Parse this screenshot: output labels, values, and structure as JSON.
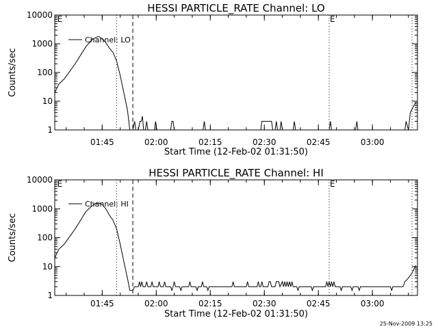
{
  "chart_data": [
    {
      "type": "line",
      "title": "HESSI PARTICLE_RATE Channel: LO",
      "xlabel": "Start Time (12-Feb-02 01:31:50)",
      "ylabel": "Counts/sec",
      "y_scale": "log",
      "ylim": [
        1,
        10000
      ],
      "xlim": [
        "01:31:50",
        "03:12:30"
      ],
      "x_ticks": [
        "01:45",
        "02:00",
        "02:15",
        "02:30",
        "02:45",
        "03:00"
      ],
      "y_ticks": [
        "1",
        "10",
        "100",
        "1000",
        "10000"
      ],
      "legend": {
        "position": "top-left",
        "entries": [
          "Channel: LO"
        ]
      },
      "annotations": [
        {
          "text": "E",
          "x": "01:32:20"
        },
        {
          "text": "E",
          "x": "02:48:00"
        }
      ],
      "vertical_lines": [
        {
          "x": "01:49:00",
          "style": "dotted"
        },
        {
          "x": "01:53:30",
          "style": "dashed"
        },
        {
          "x": "02:48:00",
          "style": "dotted"
        },
        {
          "x": "03:11:00",
          "style": "dotted"
        }
      ],
      "series": [
        {
          "name": "Channel: LO",
          "points": [
            [
              "01:31:50",
              20
            ],
            [
              "01:33:00",
              40
            ],
            [
              "01:34:30",
              60
            ],
            [
              "01:36:00",
              110
            ],
            [
              "01:37:30",
              200
            ],
            [
              "01:39:00",
              400
            ],
            [
              "01:40:30",
              800
            ],
            [
              "01:42:00",
              1300
            ],
            [
              "01:43:00",
              1600
            ],
            [
              "01:44:00",
              1800
            ],
            [
              "01:45:00",
              1500
            ],
            [
              "01:46:00",
              1100
            ],
            [
              "01:47:00",
              700
            ],
            [
              "01:48:00",
              500
            ],
            [
              "01:49:00",
              250
            ],
            [
              "01:50:00",
              80
            ],
            [
              "01:51:00",
              20
            ],
            [
              "01:52:00",
              5
            ],
            [
              "01:52:40",
              1
            ],
            [
              "01:53:30",
              1
            ],
            [
              "01:54:00",
              2
            ],
            [
              "01:54:20",
              1
            ],
            [
              "01:55:00",
              1
            ],
            [
              "01:55:30",
              2
            ],
            [
              "01:55:50",
              2
            ],
            [
              "01:56:10",
              3
            ],
            [
              "01:56:30",
              1
            ],
            [
              "01:57:00",
              1
            ],
            [
              "01:57:20",
              2
            ],
            [
              "01:57:40",
              1
            ],
            [
              "01:59:30",
              1
            ],
            [
              "01:59:50",
              2
            ],
            [
              "02:00:10",
              1
            ],
            [
              "02:04:00",
              1
            ],
            [
              "02:04:20",
              2
            ],
            [
              "02:04:40",
              2
            ],
            [
              "02:05:00",
              1
            ],
            [
              "02:13:00",
              1
            ],
            [
              "02:13:20",
              2
            ],
            [
              "02:13:40",
              1
            ],
            [
              "02:29:00",
              1
            ],
            [
              "02:29:20",
              2
            ],
            [
              "02:32:00",
              2
            ],
            [
              "02:32:20",
              1
            ],
            [
              "02:33:00",
              1
            ],
            [
              "02:33:20",
              2
            ],
            [
              "02:33:40",
              1
            ],
            [
              "02:34:20",
              1
            ],
            [
              "02:34:40",
              2
            ],
            [
              "02:35:00",
              1
            ],
            [
              "02:38:00",
              1
            ],
            [
              "02:38:20",
              2
            ],
            [
              "02:38:40",
              1
            ],
            [
              "02:48:00",
              1
            ],
            [
              "02:48:20",
              2
            ],
            [
              "02:48:40",
              1
            ],
            [
              "02:55:20",
              1
            ],
            [
              "02:55:40",
              2
            ],
            [
              "02:56:00",
              1
            ],
            [
              "03:09:00",
              1
            ],
            [
              "03:09:20",
              2
            ],
            [
              "03:10:00",
              1
            ],
            [
              "03:10:30",
              4
            ],
            [
              "03:11:30",
              7
            ],
            [
              "03:12:00",
              9
            ]
          ]
        }
      ]
    },
    {
      "type": "line",
      "title": "HESSI PARTICLE_RATE Channel: HI",
      "xlabel": "Start Time (12-Feb-02 01:31:50)",
      "ylabel": "Counts/sec",
      "y_scale": "log",
      "ylim": [
        1,
        10000
      ],
      "xlim": [
        "01:31:50",
        "03:12:30"
      ],
      "x_ticks": [
        "01:45",
        "02:00",
        "02:15",
        "02:30",
        "02:45",
        "03:00"
      ],
      "y_ticks": [
        "1",
        "10",
        "100",
        "1000",
        "10000"
      ],
      "legend": {
        "position": "top-left",
        "entries": [
          "Channel: HI"
        ]
      },
      "annotations": [
        {
          "text": "E",
          "x": "01:32:20"
        },
        {
          "text": "E",
          "x": "02:48:00"
        }
      ],
      "vertical_lines": [
        {
          "x": "01:49:00",
          "style": "dotted"
        },
        {
          "x": "01:53:30",
          "style": "dashed"
        },
        {
          "x": "02:48:00",
          "style": "dotted"
        },
        {
          "x": "03:11:00",
          "style": "dotted"
        }
      ],
      "series": [
        {
          "name": "Channel: HI",
          "points": [
            [
              "01:31:50",
              20
            ],
            [
              "01:33:00",
              40
            ],
            [
              "01:34:30",
              60
            ],
            [
              "01:36:00",
              110
            ],
            [
              "01:37:30",
              200
            ],
            [
              "01:39:00",
              400
            ],
            [
              "01:40:30",
              800
            ],
            [
              "01:42:00",
              1200
            ],
            [
              "01:43:00",
              1500
            ],
            [
              "01:44:00",
              1600
            ],
            [
              "01:45:00",
              1400
            ],
            [
              "01:46:00",
              1000
            ],
            [
              "01:47:00",
              600
            ],
            [
              "01:48:00",
              400
            ],
            [
              "01:49:00",
              200
            ],
            [
              "01:50:00",
              60
            ],
            [
              "01:51:00",
              15
            ],
            [
              "01:52:00",
              4
            ],
            [
              "01:52:40",
              1.5
            ],
            [
              "01:53:30",
              1.5
            ],
            [
              "01:54:00",
              2
            ],
            [
              "01:55:00",
              2
            ],
            [
              "01:55:20",
              3
            ],
            [
              "01:55:40",
              2
            ],
            [
              "01:56:00",
              3
            ],
            [
              "01:56:20",
              2
            ],
            [
              "01:57:00",
              2
            ],
            [
              "01:57:20",
              3
            ],
            [
              "01:57:40",
              2
            ],
            [
              "01:58:30",
              2
            ],
            [
              "01:58:50",
              3
            ],
            [
              "01:59:10",
              2
            ],
            [
              "02:00:30",
              2
            ],
            [
              "02:00:50",
              3
            ],
            [
              "02:01:10",
              2
            ],
            [
              "02:02:00",
              2
            ],
            [
              "02:02:20",
              3
            ],
            [
              "02:02:40",
              2
            ],
            [
              "02:04:00",
              2
            ],
            [
              "02:04:20",
              1.5
            ],
            [
              "02:04:40",
              2
            ],
            [
              "02:05:00",
              3
            ],
            [
              "02:05:20",
              2
            ],
            [
              "02:06:30",
              2
            ],
            [
              "02:06:50",
              1.5
            ],
            [
              "02:07:10",
              2
            ],
            [
              "02:09:00",
              2
            ],
            [
              "02:09:20",
              3
            ],
            [
              "02:09:40",
              2
            ],
            [
              "02:11:00",
              2
            ],
            [
              "02:11:20",
              1.5
            ],
            [
              "02:11:40",
              2
            ],
            [
              "02:12:30",
              2
            ],
            [
              "02:12:50",
              3
            ],
            [
              "02:13:10",
              2
            ],
            [
              "02:14:00",
              2
            ],
            [
              "02:14:20",
              1.5
            ],
            [
              "02:14:40",
              2
            ],
            [
              "02:21:00",
              2
            ],
            [
              "02:21:20",
              3
            ],
            [
              "02:21:40",
              2
            ],
            [
              "02:25:00",
              2
            ],
            [
              "02:25:20",
              3
            ],
            [
              "02:25:40",
              2
            ],
            [
              "02:28:00",
              2
            ],
            [
              "02:28:20",
              3
            ],
            [
              "02:28:40",
              2
            ],
            [
              "02:29:00",
              2
            ],
            [
              "02:29:20",
              3
            ],
            [
              "02:29:40",
              2
            ],
            [
              "02:31:00",
              2
            ],
            [
              "02:31:20",
              3
            ],
            [
              "02:31:40",
              3
            ],
            [
              "02:32:00",
              2
            ],
            [
              "02:33:00",
              2
            ],
            [
              "02:33:20",
              3
            ],
            [
              "02:33:40",
              3
            ],
            [
              "02:34:00",
              3
            ],
            [
              "02:34:20",
              2
            ],
            [
              "02:35:00",
              3
            ],
            [
              "02:35:20",
              2
            ],
            [
              "02:35:40",
              3
            ],
            [
              "02:36:00",
              2
            ],
            [
              "02:36:20",
              3
            ],
            [
              "02:36:40",
              2
            ],
            [
              "02:37:00",
              3
            ],
            [
              "02:37:20",
              2
            ],
            [
              "02:37:40",
              3
            ],
            [
              "02:38:00",
              2
            ],
            [
              "02:39:00",
              2
            ],
            [
              "02:39:20",
              1.5
            ],
            [
              "02:39:40",
              2
            ],
            [
              "02:43:00",
              2
            ],
            [
              "02:43:20",
              1.5
            ],
            [
              "02:43:40",
              2
            ],
            [
              "02:47:00",
              2
            ],
            [
              "02:47:20",
              3
            ],
            [
              "02:47:40",
              2
            ],
            [
              "02:48:00",
              3
            ],
            [
              "02:48:20",
              2
            ],
            [
              "02:48:40",
              3
            ],
            [
              "02:49:00",
              2
            ],
            [
              "02:49:20",
              3
            ],
            [
              "02:49:40",
              2
            ],
            [
              "02:51:00",
              2
            ],
            [
              "02:51:20",
              1.5
            ],
            [
              "02:51:40",
              2
            ],
            [
              "02:54:00",
              2
            ],
            [
              "02:54:20",
              1.5
            ],
            [
              "02:54:40",
              2
            ],
            [
              "02:56:00",
              2
            ],
            [
              "02:56:20",
              1.5
            ],
            [
              "02:56:40",
              2
            ],
            [
              "03:05:00",
              2
            ],
            [
              "03:05:20",
              1.5
            ],
            [
              "03:05:40",
              2
            ],
            [
              "03:08:30",
              2
            ],
            [
              "03:09:00",
              3
            ],
            [
              "03:10:00",
              4
            ],
            [
              "03:11:00",
              6
            ],
            [
              "03:12:00",
              11
            ]
          ]
        }
      ]
    }
  ],
  "footer": {
    "timestamp": "25-Nov-2009 13:25"
  }
}
